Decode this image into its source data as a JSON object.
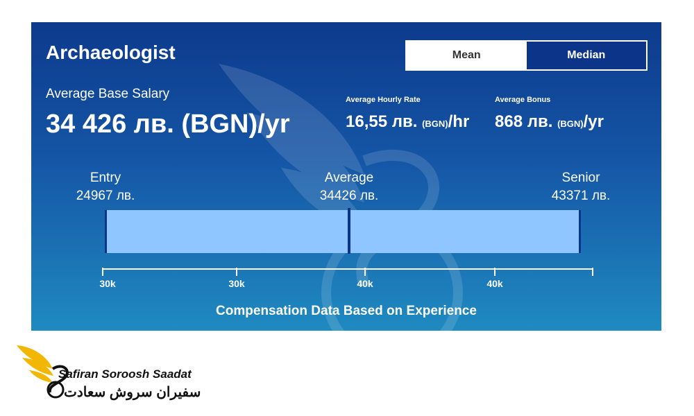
{
  "title": "Archaeologist",
  "toggle": {
    "mean_label": "Mean",
    "median_label": "Median",
    "selected": "Mean"
  },
  "base": {
    "label": "Average Base Salary",
    "value": "34 426 лв. (BGN)/yr"
  },
  "hourly": {
    "label": "Average Hourly Rate",
    "value": "16,55 лв.",
    "currency": "(BGN)",
    "unit": "/hr"
  },
  "bonus": {
    "label": "Average Bonus",
    "value": "868 лв.",
    "currency": "(BGN)",
    "unit": "/yr"
  },
  "levels": {
    "entry": {
      "label": "Entry",
      "value": "24967 лв."
    },
    "average": {
      "label": "Average",
      "value": "34426 лв."
    },
    "senior": {
      "label": "Senior",
      "value": "43371 лв."
    }
  },
  "axis_ticks": [
    "30k",
    "30k",
    "40k",
    "40k"
  ],
  "caption": "Compensation Data Based on Experience",
  "logo": {
    "name_en": "Safiran Soroosh Saadat",
    "name_fa": "سفیران سروش سعادت"
  },
  "colors": {
    "card_top": "#0d3a8c",
    "card_bottom": "#1f8ac0",
    "bar": "#8fc6ff",
    "marker": "#0c3488",
    "toggle_active": "#0c3488"
  }
}
